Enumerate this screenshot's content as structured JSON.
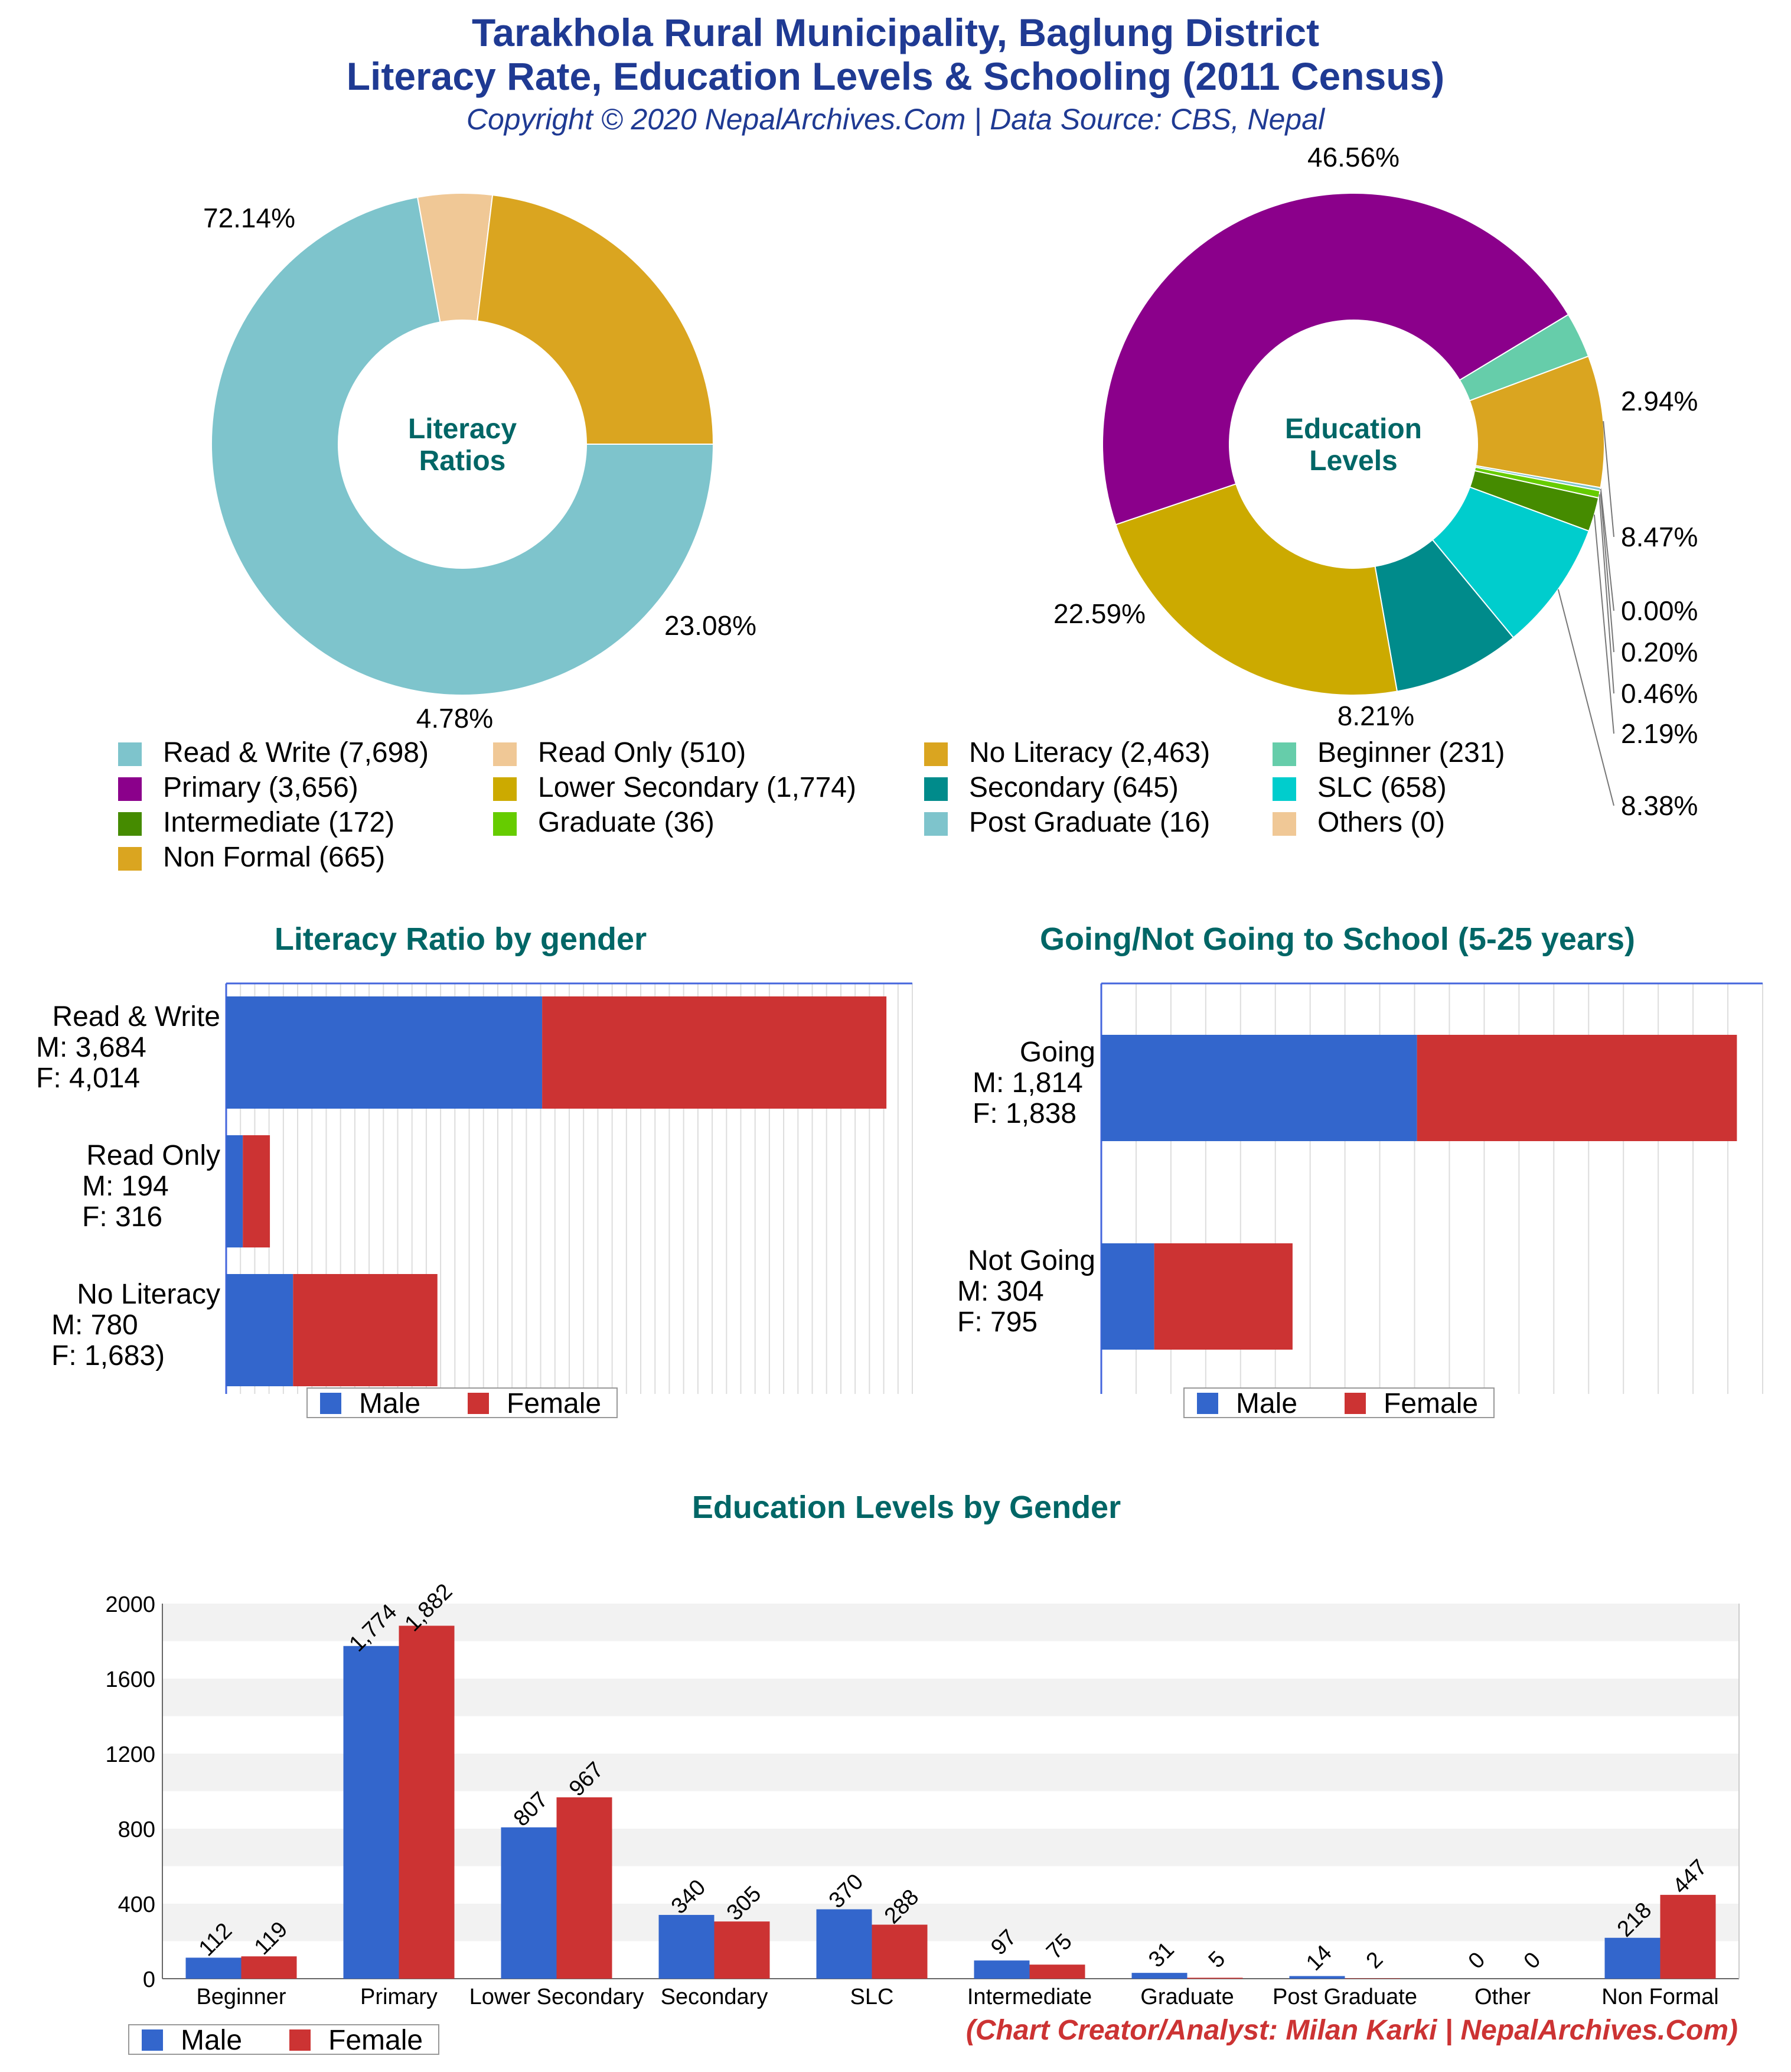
{
  "header": {
    "title_line1": "Tarakhola Rural Municipality, Baglung District",
    "title_line2": "Literacy Rate, Education Levels & Schooling (2011 Census)",
    "subtitle": "Copyright © 2020 NepalArchives.Com | Data Source: CBS, Nepal"
  },
  "colors": {
    "title": "#1f3a93",
    "section_title": "#006666",
    "male": "#3366cc",
    "female": "#cc3333",
    "credit": "#cc3333"
  },
  "legend": {
    "items": [
      {
        "label": "Read & Write (7,698)",
        "color": "#7ec4cc"
      },
      {
        "label": "Read Only (510)",
        "color": "#f0c896"
      },
      {
        "label": "No Literacy (2,463)",
        "color": "#daa520"
      },
      {
        "label": "Beginner (231)",
        "color": "#66cdaa"
      },
      {
        "label": "Primary (3,656)",
        "color": "#8b008b"
      },
      {
        "label": "Lower Secondary (1,774)",
        "color": "#ccaa00"
      },
      {
        "label": "Secondary (645)",
        "color": "#008b8b"
      },
      {
        "label": "SLC (658)",
        "color": "#00cdcd"
      },
      {
        "label": "Intermediate (172)",
        "color": "#458b00"
      },
      {
        "label": "Graduate (36)",
        "color": "#66cc00"
      },
      {
        "label": "Post Graduate (16)",
        "color": "#7ec4cc"
      },
      {
        "label": "Others (0)",
        "color": "#f0c896"
      },
      {
        "label": "Non Formal (665)",
        "color": "#daa520"
      }
    ]
  },
  "gender_legend": {
    "male": "Male",
    "female": "Female"
  },
  "credit": "(Chart Creator/Analyst: Milan Karki | NepalArchives.Com)",
  "chart_data": [
    {
      "type": "pie",
      "donut": true,
      "center_label": [
        "Literacy",
        "Ratios"
      ],
      "slices": [
        {
          "label": "Read & Write",
          "value": 7698,
          "pct": "72.14%",
          "color": "#7ec4cc"
        },
        {
          "label": "Read Only",
          "value": 510,
          "pct": "4.78%",
          "color": "#f0c896"
        },
        {
          "label": "No Literacy",
          "value": 2463,
          "pct": "23.08%",
          "color": "#daa520"
        }
      ]
    },
    {
      "type": "pie",
      "donut": true,
      "center_label": [
        "Education",
        "Levels"
      ],
      "slices": [
        {
          "label": "Beginner",
          "value": 231,
          "pct": "2.94%",
          "color": "#66cdaa"
        },
        {
          "label": "Non Formal",
          "value": 665,
          "pct": "8.47%",
          "color": "#daa520"
        },
        {
          "label": "Others",
          "value": 0,
          "pct": "0.00%",
          "color": "#f0c896"
        },
        {
          "label": "Post Graduate",
          "value": 16,
          "pct": "0.20%",
          "color": "#7ec4cc"
        },
        {
          "label": "Graduate",
          "value": 36,
          "pct": "0.46%",
          "color": "#66cc00"
        },
        {
          "label": "Intermediate",
          "value": 172,
          "pct": "2.19%",
          "color": "#458b00"
        },
        {
          "label": "SLC",
          "value": 658,
          "pct": "8.38%",
          "color": "#00cdcd"
        },
        {
          "label": "Secondary",
          "value": 645,
          "pct": "8.21%",
          "color": "#008b8b"
        },
        {
          "label": "Lower Secondary",
          "value": 1774,
          "pct": "22.59%",
          "color": "#ccaa00"
        },
        {
          "label": "Primary",
          "value": 3656,
          "pct": "46.56%",
          "color": "#8b008b"
        }
      ]
    },
    {
      "type": "bar",
      "orientation": "horizontal",
      "stacked": true,
      "title": "Literacy Ratio by gender",
      "categories": [
        "Read & Write",
        "Read Only",
        "No Literacy"
      ],
      "category_labels": [
        [
          "Read & Write",
          "M: 3,684",
          "F: 4,014"
        ],
        [
          "Read Only",
          "M: 194",
          "F: 316"
        ],
        [
          "No Literacy",
          "M: 780",
          "F: 1,683)"
        ]
      ],
      "series": [
        {
          "name": "Male",
          "values": [
            3684,
            194,
            780
          ]
        },
        {
          "name": "Female",
          "values": [
            4014,
            316,
            1683
          ]
        }
      ],
      "xlim": [
        0,
        8000
      ]
    },
    {
      "type": "bar",
      "orientation": "horizontal",
      "stacked": true,
      "title": "Going/Not Going to School (5-25 years)",
      "categories": [
        "Going",
        "Not Going"
      ],
      "category_labels": [
        [
          "Going",
          "M: 1,814",
          "F: 1,838"
        ],
        [
          "Not Going",
          "M: 304",
          "F: 795"
        ]
      ],
      "series": [
        {
          "name": "Male",
          "values": [
            1814,
            304
          ]
        },
        {
          "name": "Female",
          "values": [
            1838,
            795
          ]
        }
      ],
      "xlim": [
        0,
        3800
      ]
    },
    {
      "type": "bar",
      "title": "Education Levels by Gender",
      "categories": [
        "Beginner",
        "Primary",
        "Lower Secondary",
        "Secondary",
        "SLC",
        "Intermediate",
        "Graduate",
        "Post Graduate",
        "Other",
        "Non Formal"
      ],
      "series": [
        {
          "name": "Male",
          "values": [
            112,
            1774,
            807,
            340,
            370,
            97,
            31,
            14,
            0,
            218
          ],
          "labels": [
            "112",
            "1,774",
            "807",
            "340",
            "370",
            "97",
            "31",
            "14",
            "0",
            "218"
          ]
        },
        {
          "name": "Female",
          "values": [
            119,
            1882,
            967,
            305,
            288,
            75,
            5,
            2,
            0,
            447
          ],
          "labels": [
            "119",
            "1,882",
            "967",
            "305",
            "288",
            "75",
            "5",
            "2",
            "0",
            "447"
          ]
        }
      ],
      "ylim": [
        0,
        2000
      ],
      "yticks": [
        "0",
        "400",
        "800",
        "1200",
        "1600",
        "2000"
      ]
    }
  ]
}
